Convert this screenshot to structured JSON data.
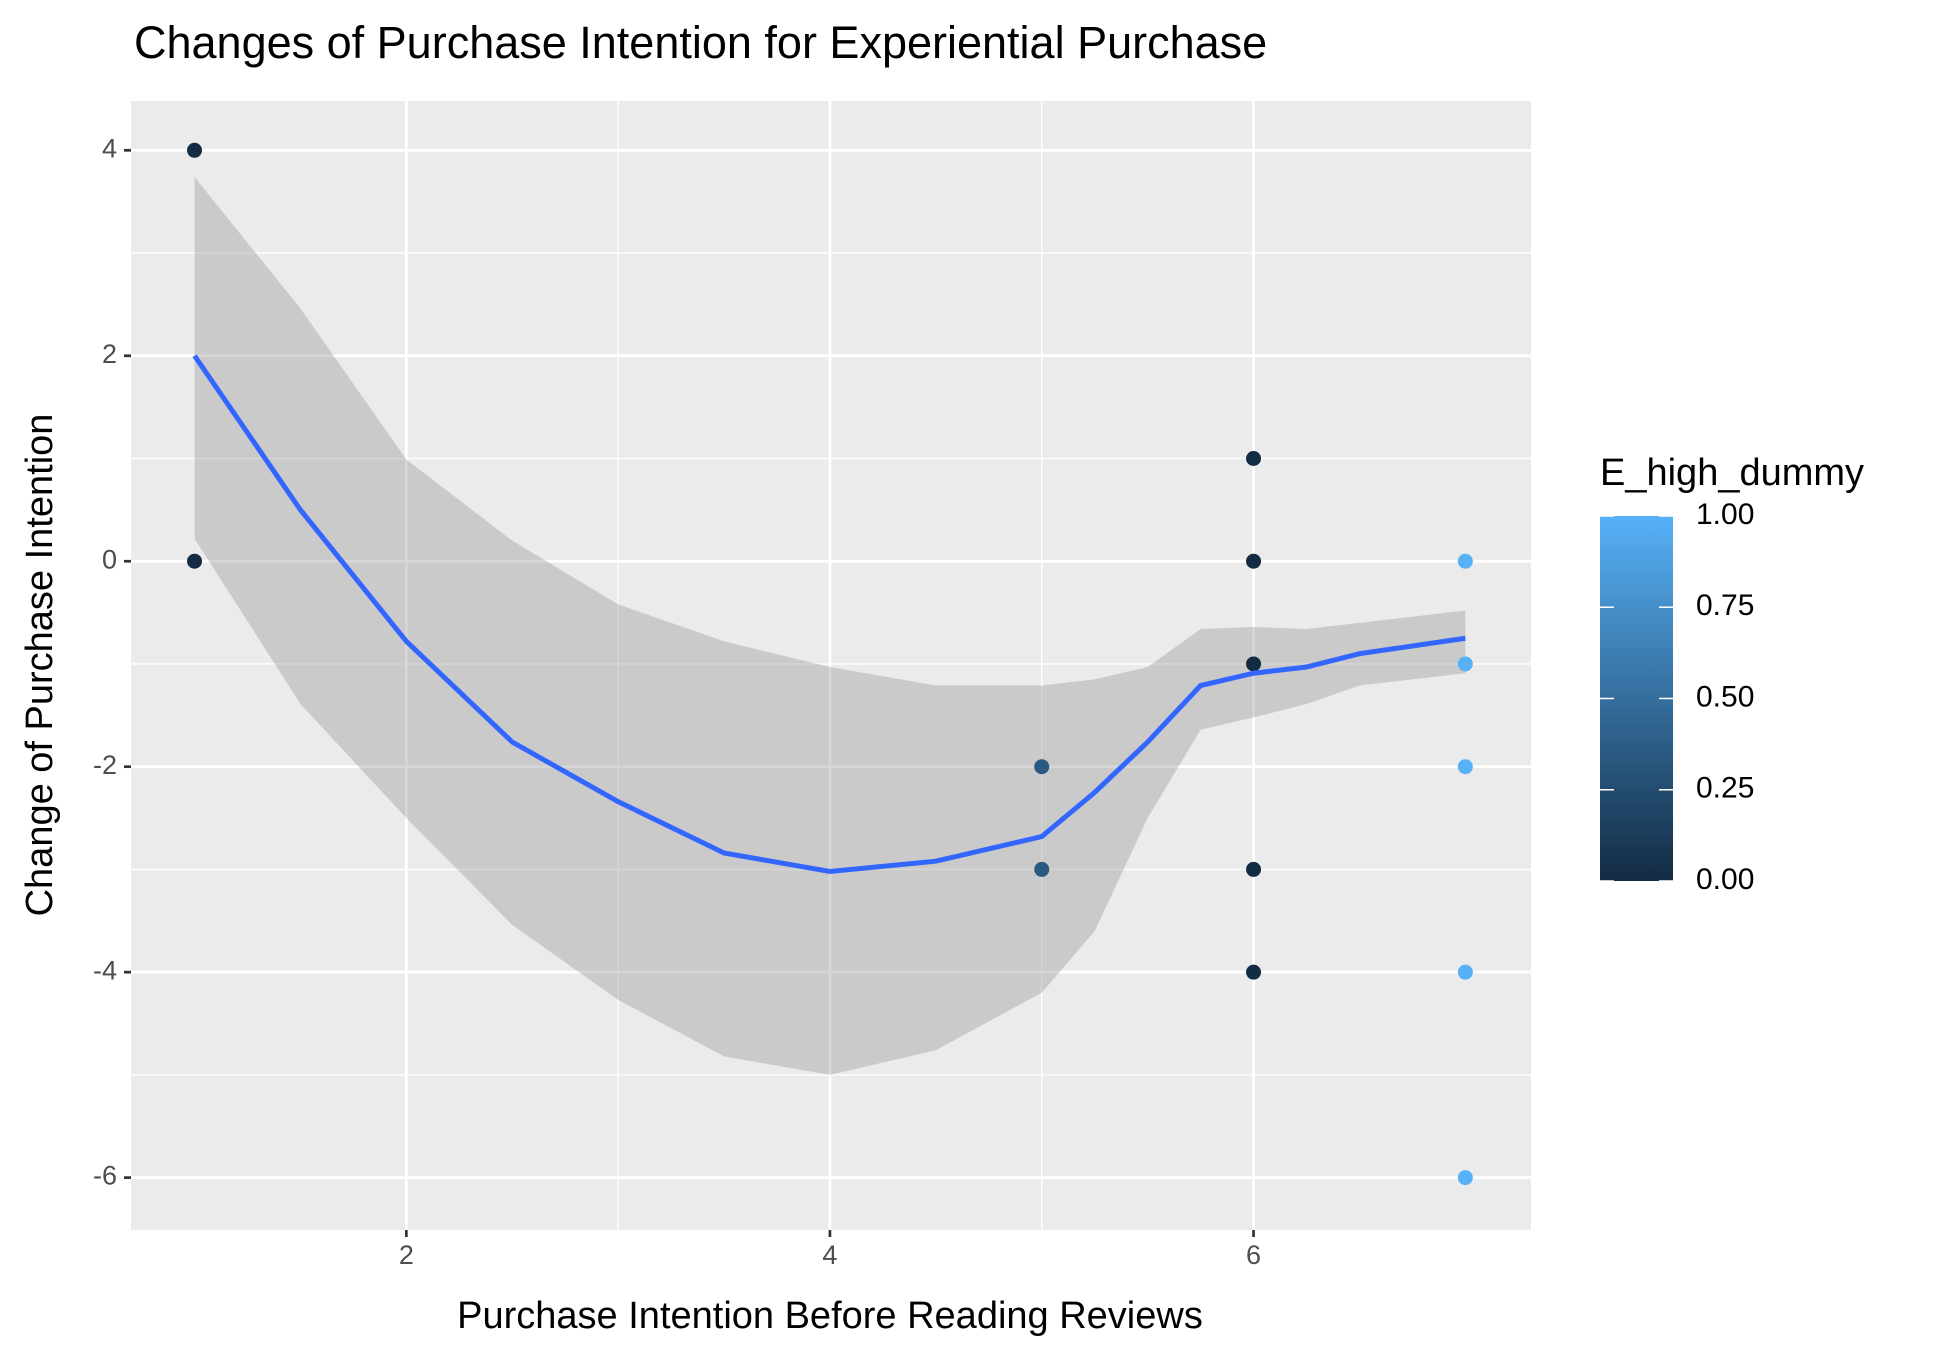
{
  "chart_data": {
    "type": "scatter",
    "title": "Changes of Purchase Intention for Experiential Purchase",
    "x_label": "Purchase Intention Before Reading Reviews",
    "y_label": "Change of Purchase Intention",
    "xlim": [
      0.7,
      7.31
    ],
    "ylim": [
      -6.51,
      4.48
    ],
    "xticks": [
      2,
      4,
      6
    ],
    "yticks": [
      -6,
      -4,
      -2,
      0,
      2,
      4
    ],
    "minor_xticks": [
      3,
      5
    ],
    "minor_yticks": [
      -5,
      -3,
      -1,
      1,
      3
    ],
    "grid": true,
    "points": {
      "x": [
        1,
        1,
        5,
        5,
        6,
        6,
        6,
        6,
        6,
        7,
        7,
        7,
        7,
        7
      ],
      "y": [
        4,
        0,
        -2,
        -3,
        1,
        0,
        -1,
        -3,
        -4,
        0,
        -1,
        -2,
        -4,
        -6
      ],
      "color_values": [
        0,
        0,
        0.35,
        0.35,
        0,
        0,
        0,
        0,
        0,
        1,
        1,
        1,
        1,
        1
      ]
    },
    "smooth": {
      "color": "#3366FF",
      "band_color": "#999999",
      "x": [
        1,
        1.5,
        2,
        2.5,
        3,
        3.5,
        4,
        4.5,
        5,
        5.25,
        5.5,
        5.75,
        6,
        6.25,
        6.5,
        7
      ],
      "y": [
        2.0,
        0.5,
        -0.78,
        -1.76,
        -2.34,
        -2.84,
        -3.02,
        -2.92,
        -2.68,
        -2.25,
        -1.76,
        -1.21,
        -1.09,
        -1.03,
        -0.9,
        -0.75
      ],
      "ymin": [
        0.22,
        -1.39,
        -2.5,
        -3.54,
        -4.27,
        -4.82,
        -5.0,
        -4.76,
        -4.2,
        -3.6,
        -2.5,
        -1.64,
        -1.52,
        -1.39,
        -1.21,
        -1.09
      ],
      "ymax": [
        3.74,
        2.46,
        0.99,
        0.2,
        -0.42,
        -0.78,
        -1.03,
        -1.21,
        -1.21,
        -1.15,
        -1.03,
        -0.66,
        -0.64,
        -0.66,
        -0.6,
        -0.48
      ]
    },
    "legend": {
      "title": "E_high_dummy",
      "low_color": "#132B43",
      "high_color": "#56B1F7",
      "lim": [
        0,
        1
      ],
      "ticks": [
        {
          "value": 0,
          "label": "0.00"
        },
        {
          "value": 0.25,
          "label": "0.25"
        },
        {
          "value": 0.5,
          "label": "0.50"
        },
        {
          "value": 0.75,
          "label": "0.75"
        },
        {
          "value": 1,
          "label": "1.00"
        }
      ]
    }
  }
}
